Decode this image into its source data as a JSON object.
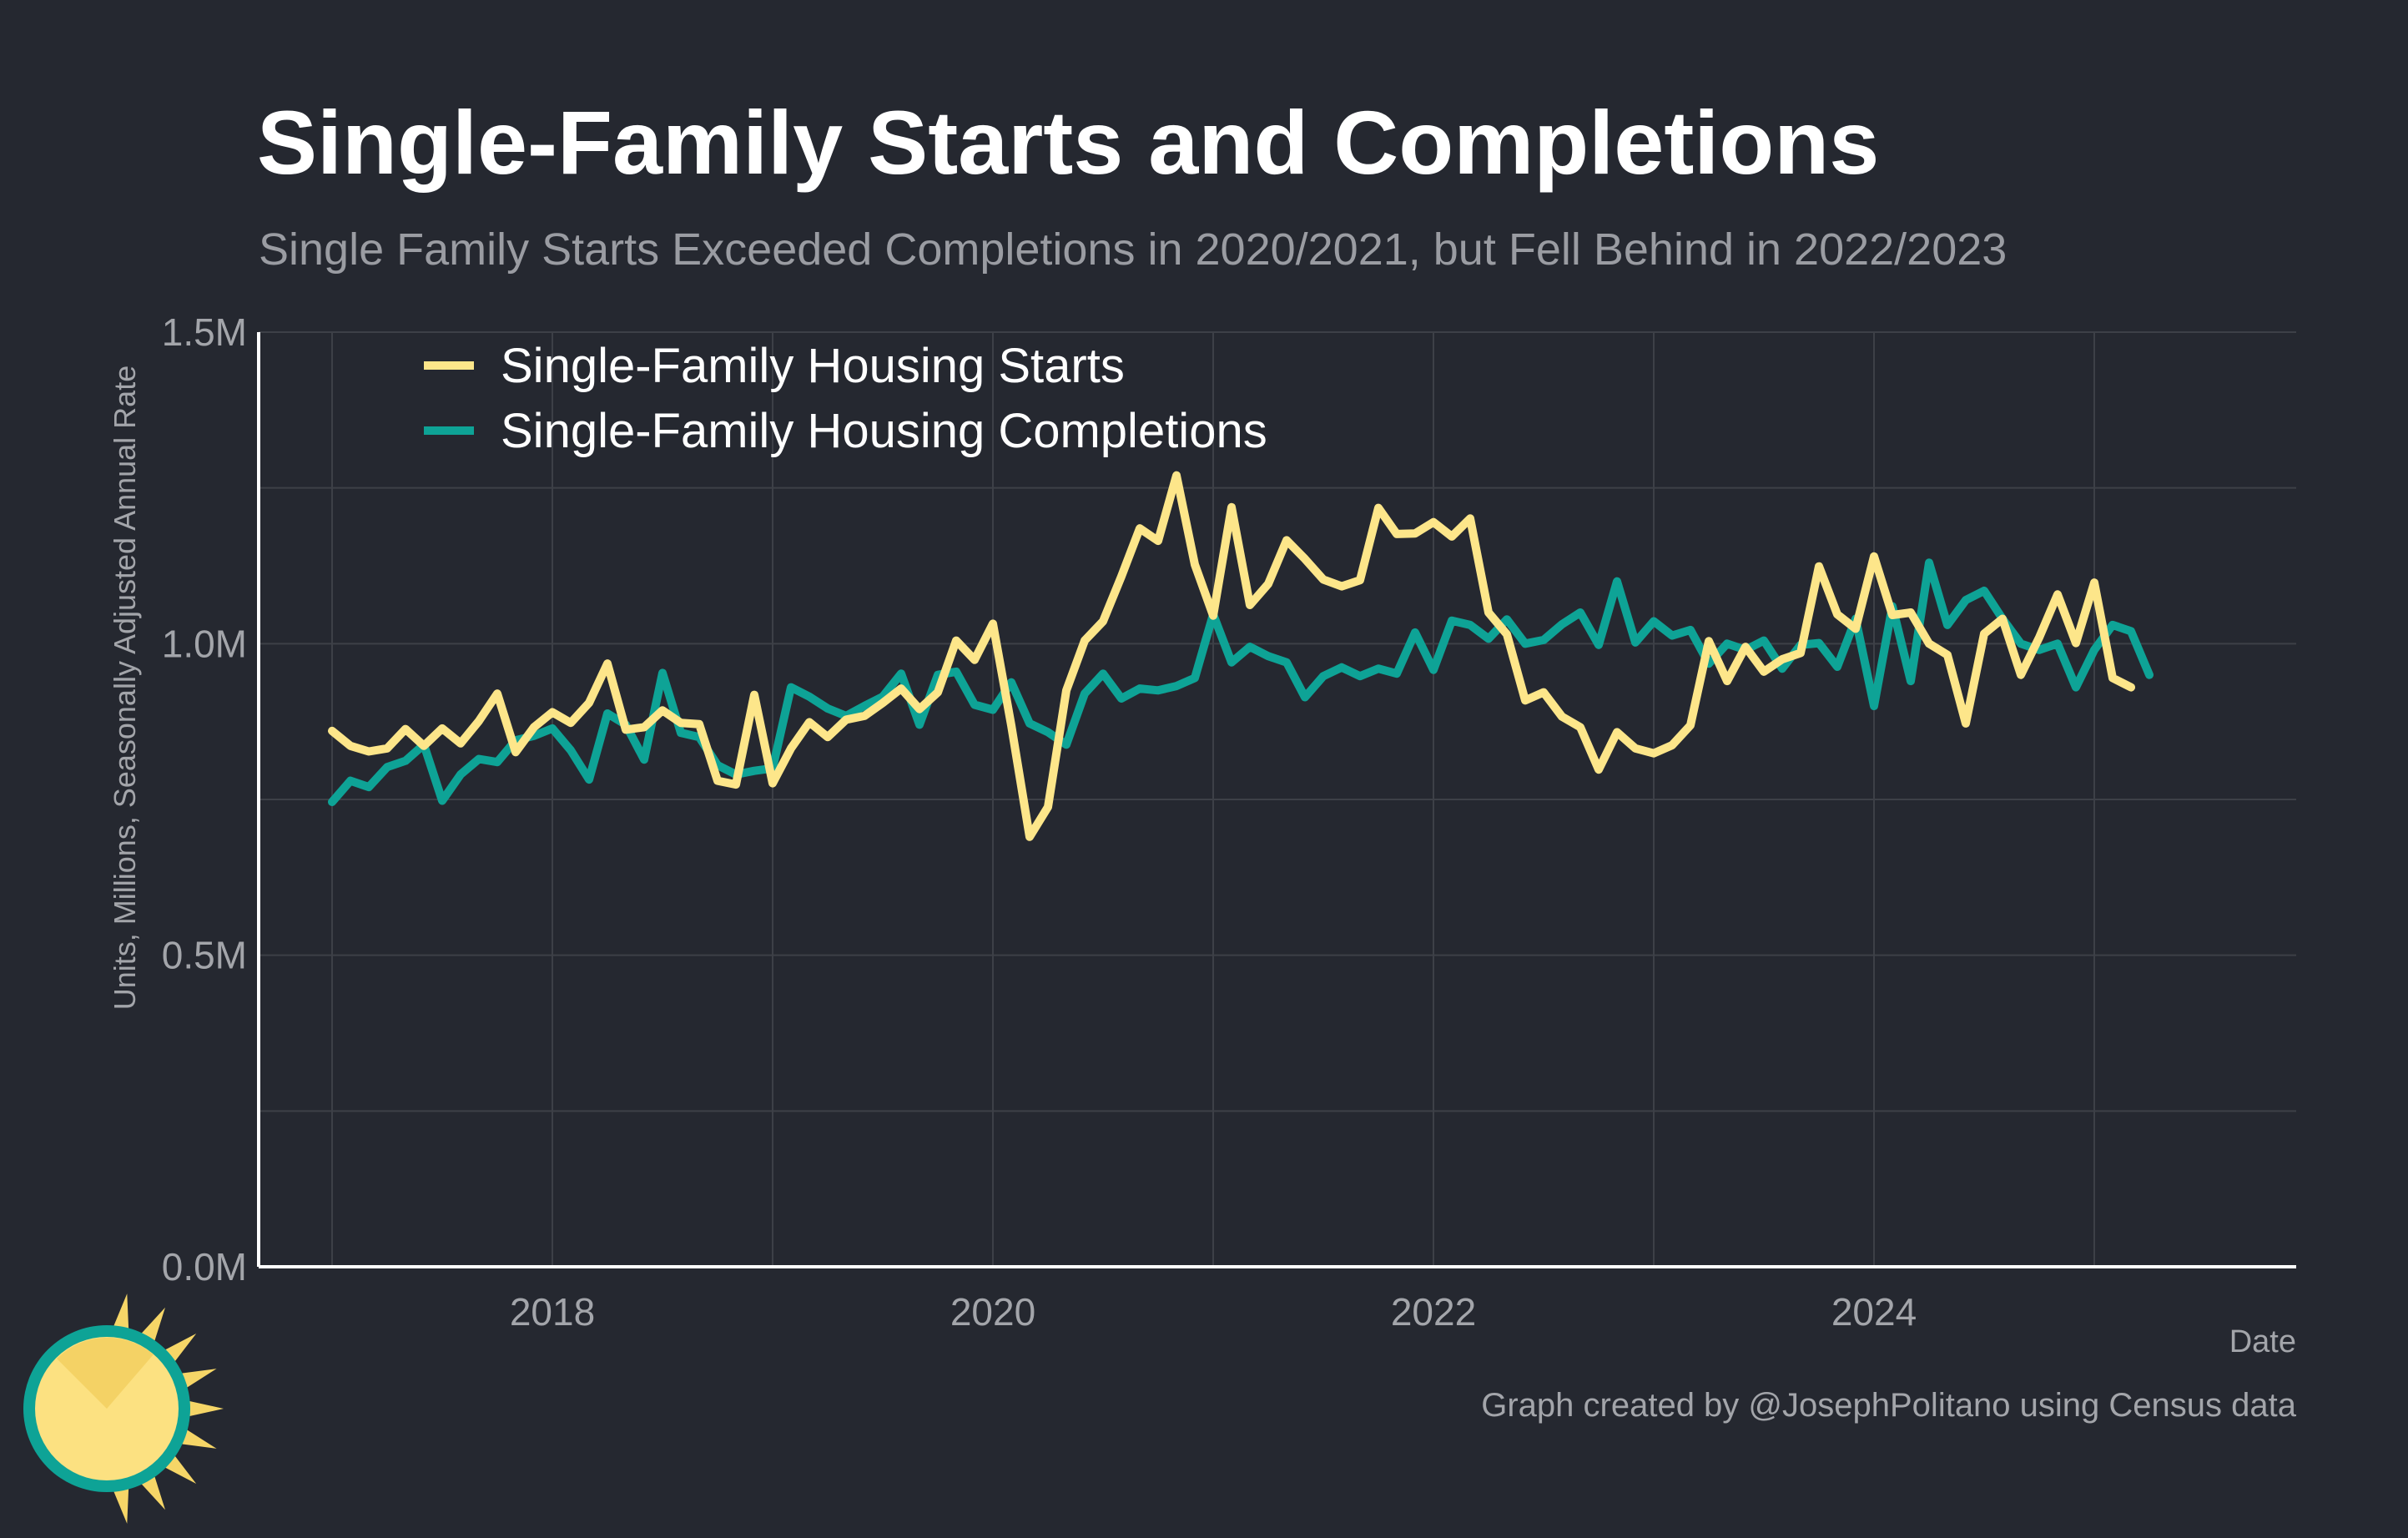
{
  "title": "Single-Family Starts and Completions",
  "subtitle": "Single Family Starts Exceeded Completions in 2020/2021, but Fell Behind in 2022/2023",
  "credit": "Graph created by @JosephPolitano using Census data",
  "colors": {
    "background": "#252830",
    "starts": "#fde68a",
    "completions": "#0ea396",
    "grid": "#3d4047",
    "axis": "#ffffff"
  },
  "chart_data": {
    "type": "line",
    "title": "Single-Family Starts and Completions",
    "xlabel": "Date",
    "ylabel": "Units, Millions, Seasonally Adjusted Annual Rate",
    "x_start": "2017-01",
    "x_frequency": "monthly",
    "xlim": [
      "2016-09",
      "2025-12"
    ],
    "ylim": [
      0,
      1.5
    ],
    "x_ticks": [
      "2018",
      "2020",
      "2022",
      "2024"
    ],
    "y_ticks": [
      "0.0M",
      "0.5M",
      "1.0M",
      "1.5M"
    ],
    "legend_position": "top-left",
    "grid": true,
    "series": [
      {
        "name": "Single-Family Housing Starts",
        "values": [
          0.86,
          0.836,
          0.827,
          0.832,
          0.863,
          0.836,
          0.864,
          0.84,
          0.876,
          0.92,
          0.826,
          0.866,
          0.89,
          0.873,
          0.905,
          0.968,
          0.862,
          0.866,
          0.893,
          0.873,
          0.871,
          0.78,
          0.774,
          0.918,
          0.776,
          0.832,
          0.874,
          0.85,
          0.878,
          0.884,
          0.905,
          0.928,
          0.895,
          0.922,
          1.005,
          0.974,
          1.032,
          0.869,
          0.69,
          0.738,
          0.925,
          1.005,
          1.036,
          1.108,
          1.185,
          1.165,
          1.27,
          1.127,
          1.045,
          1.219,
          1.062,
          1.096,
          1.166,
          1.136,
          1.103,
          1.092,
          1.102,
          1.218,
          1.176,
          1.177,
          1.195,
          1.172,
          1.201,
          1.05,
          1.015,
          0.909,
          0.922,
          0.883,
          0.866,
          0.798,
          0.858,
          0.832,
          0.824,
          0.837,
          0.869,
          1.004,
          0.94,
          0.995,
          0.955,
          0.975,
          0.985,
          1.124,
          1.047,
          1.024,
          1.14,
          1.046,
          1.05,
          1.0,
          0.982,
          0.872,
          1.016,
          1.04,
          0.95,
          1.01,
          1.079,
          1.001,
          1.098,
          0.945,
          0.93
        ]
      },
      {
        "name": "Single-Family Housing Completions",
        "values": [
          0.746,
          0.78,
          0.77,
          0.802,
          0.812,
          0.838,
          0.748,
          0.79,
          0.815,
          0.81,
          0.845,
          0.852,
          0.864,
          0.829,
          0.782,
          0.888,
          0.87,
          0.814,
          0.953,
          0.857,
          0.85,
          0.805,
          0.79,
          0.796,
          0.8,
          0.93,
          0.915,
          0.896,
          0.884,
          0.9,
          0.915,
          0.952,
          0.87,
          0.95,
          0.955,
          0.902,
          0.894,
          0.938,
          0.872,
          0.858,
          0.838,
          0.92,
          0.952,
          0.912,
          0.928,
          0.925,
          0.932,
          0.945,
          1.047,
          0.97,
          0.995,
          0.98,
          0.97,
          0.914,
          0.948,
          0.962,
          0.948,
          0.96,
          0.952,
          1.018,
          0.958,
          1.037,
          1.03,
          1.008,
          1.039,
          1.0,
          1.006,
          1.031,
          1.05,
          0.998,
          1.1,
          1.002,
          1.036,
          1.013,
          1.022,
          0.968,
          1.0,
          0.99,
          1.005,
          0.96,
          0.998,
          1.001,
          0.963,
          1.04,
          0.9,
          1.06,
          0.94,
          1.13,
          1.03,
          1.07,
          1.085,
          1.04,
          1.0,
          0.99,
          1.0,
          0.93,
          0.99,
          1.03,
          1.02,
          0.95
        ]
      }
    ]
  }
}
